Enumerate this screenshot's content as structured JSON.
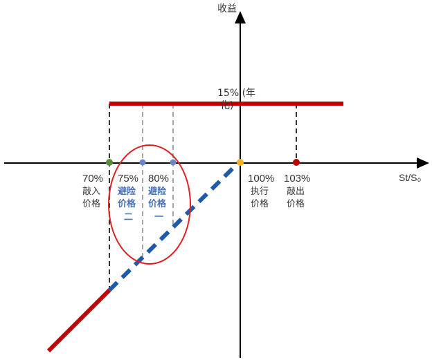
{
  "axes": {
    "y_label": "收益",
    "x_label": "St/S₀"
  },
  "cap": {
    "label_line1": "15% (年",
    "label_line2": "化)"
  },
  "levels": [
    {
      "pct": "70%",
      "line1": "敲入",
      "line2": "价格",
      "line3": ""
    },
    {
      "pct": "75%",
      "line1": "避险",
      "line2": "价格",
      "line3": "二"
    },
    {
      "pct": "80%",
      "line1": "避险",
      "line2": "价格",
      "line3": "一"
    },
    {
      "pct": "100%",
      "line1": "执行",
      "line2": "价格",
      "line3": ""
    },
    {
      "pct": "103%",
      "line1": "敲出",
      "line2": "价格",
      "line3": ""
    }
  ],
  "colors": {
    "payoff_red": "#c00000",
    "hedge_blue": "#1f5ba8",
    "axis": "#000000",
    "knock_in_dot": "#5b8c3a",
    "hedge_dot": "#6b85c9",
    "strike_dot": "#f2b61c",
    "knock_out_dot": "#c00000",
    "circle": "#e02020",
    "text_blue": "#4a72b8"
  }
}
